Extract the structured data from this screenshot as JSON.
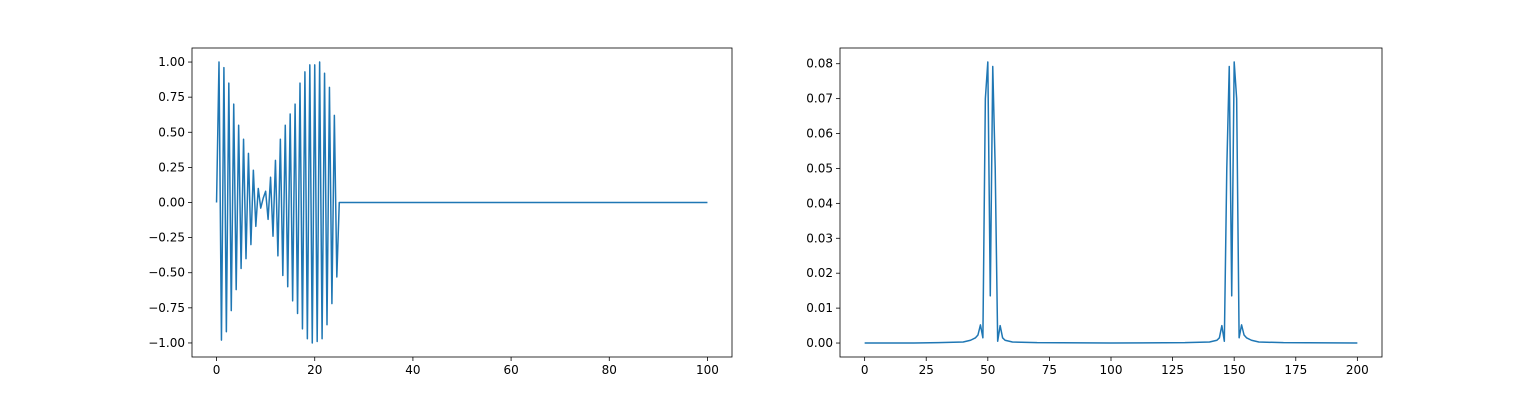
{
  "chart_data": [
    {
      "type": "line",
      "title": "",
      "xlabel": "",
      "ylabel": "",
      "xlim": [
        -5,
        105
      ],
      "ylim": [
        -1.1,
        1.1
      ],
      "xticks": [
        0,
        20,
        40,
        60,
        80,
        100
      ],
      "xtick_labels": [
        "0",
        "20",
        "40",
        "60",
        "80",
        "100"
      ],
      "yticks": [
        -1.0,
        -0.75,
        -0.5,
        -0.25,
        0.0,
        0.25,
        0.5,
        0.75,
        1.0
      ],
      "ytick_labels": [
        "−1.00",
        "−0.75",
        "−0.50",
        "−0.25",
        "0.00",
        "0.25",
        "0.50",
        "0.75",
        "1.00"
      ],
      "grid": false,
      "series": [
        {
          "color": "#1f77b4",
          "x": [
            0,
            0.5,
            1,
            1.5,
            2,
            2.5,
            3,
            3.5,
            4,
            4.5,
            5,
            5.5,
            6,
            6.5,
            7,
            7.5,
            8,
            8.5,
            9,
            9.5,
            10,
            10.5,
            11,
            11.5,
            12,
            12.5,
            13,
            13.5,
            14,
            14.5,
            15,
            15.5,
            16,
            16.5,
            17,
            17.5,
            18,
            18.5,
            19,
            19.5,
            20,
            20.5,
            21,
            21.5,
            22,
            22.5,
            23,
            23.5,
            24,
            24.5,
            25,
            100
          ],
          "y": [
            0,
            1.0,
            -0.98,
            0.96,
            -0.92,
            0.85,
            -0.77,
            0.7,
            -0.62,
            0.55,
            -0.47,
            0.45,
            -0.4,
            0.35,
            -0.3,
            0.23,
            -0.17,
            0.1,
            -0.04,
            0.03,
            0.08,
            -0.12,
            0.18,
            -0.24,
            0.3,
            -0.38,
            0.45,
            -0.52,
            0.55,
            -0.6,
            0.63,
            -0.7,
            0.7,
            -0.79,
            0.85,
            -0.9,
            0.93,
            -0.97,
            0.98,
            -1.0,
            0.98,
            -0.99,
            1.0,
            -0.97,
            0.92,
            -0.87,
            0.82,
            -0.72,
            0.62,
            -0.53,
            0.0,
            0.0
          ]
        }
      ]
    },
    {
      "type": "line",
      "title": "",
      "xlabel": "",
      "ylabel": "",
      "xlim": [
        -10,
        210
      ],
      "ylim": [
        -0.004,
        0.0845
      ],
      "xticks": [
        0,
        25,
        50,
        75,
        100,
        125,
        150,
        175,
        200
      ],
      "xtick_labels": [
        "0",
        "25",
        "50",
        "75",
        "100",
        "125",
        "150",
        "175",
        "200"
      ],
      "yticks": [
        0.0,
        0.01,
        0.02,
        0.03,
        0.04,
        0.05,
        0.06,
        0.07,
        0.08
      ],
      "ytick_labels": [
        "0.00",
        "0.01",
        "0.02",
        "0.03",
        "0.04",
        "0.05",
        "0.06",
        "0.07",
        "0.08"
      ],
      "grid": false,
      "series": [
        {
          "color": "#1f77b4",
          "x": [
            0,
            20,
            30,
            40,
            43,
            45,
            46,
            47,
            48,
            49,
            50,
            51,
            52,
            53,
            54,
            55,
            56,
            57,
            60,
            70,
            100,
            130,
            140,
            143,
            144,
            145,
            146,
            147,
            148,
            149,
            150,
            151,
            152,
            153,
            154,
            155,
            157,
            160,
            170,
            200
          ],
          "y": [
            0.0,
            0.0,
            0.0001,
            0.0003,
            0.0008,
            0.0015,
            0.0023,
            0.0052,
            0.0015,
            0.07,
            0.0805,
            0.0135,
            0.0792,
            0.05,
            0.0005,
            0.005,
            0.0015,
            0.0008,
            0.0003,
            0.0001,
            0.0,
            0.0001,
            0.0003,
            0.0008,
            0.0015,
            0.005,
            0.0005,
            0.05,
            0.0792,
            0.0135,
            0.0805,
            0.07,
            0.0015,
            0.0052,
            0.0023,
            0.0015,
            0.0008,
            0.0003,
            0.0001,
            0.0
          ]
        }
      ]
    }
  ]
}
